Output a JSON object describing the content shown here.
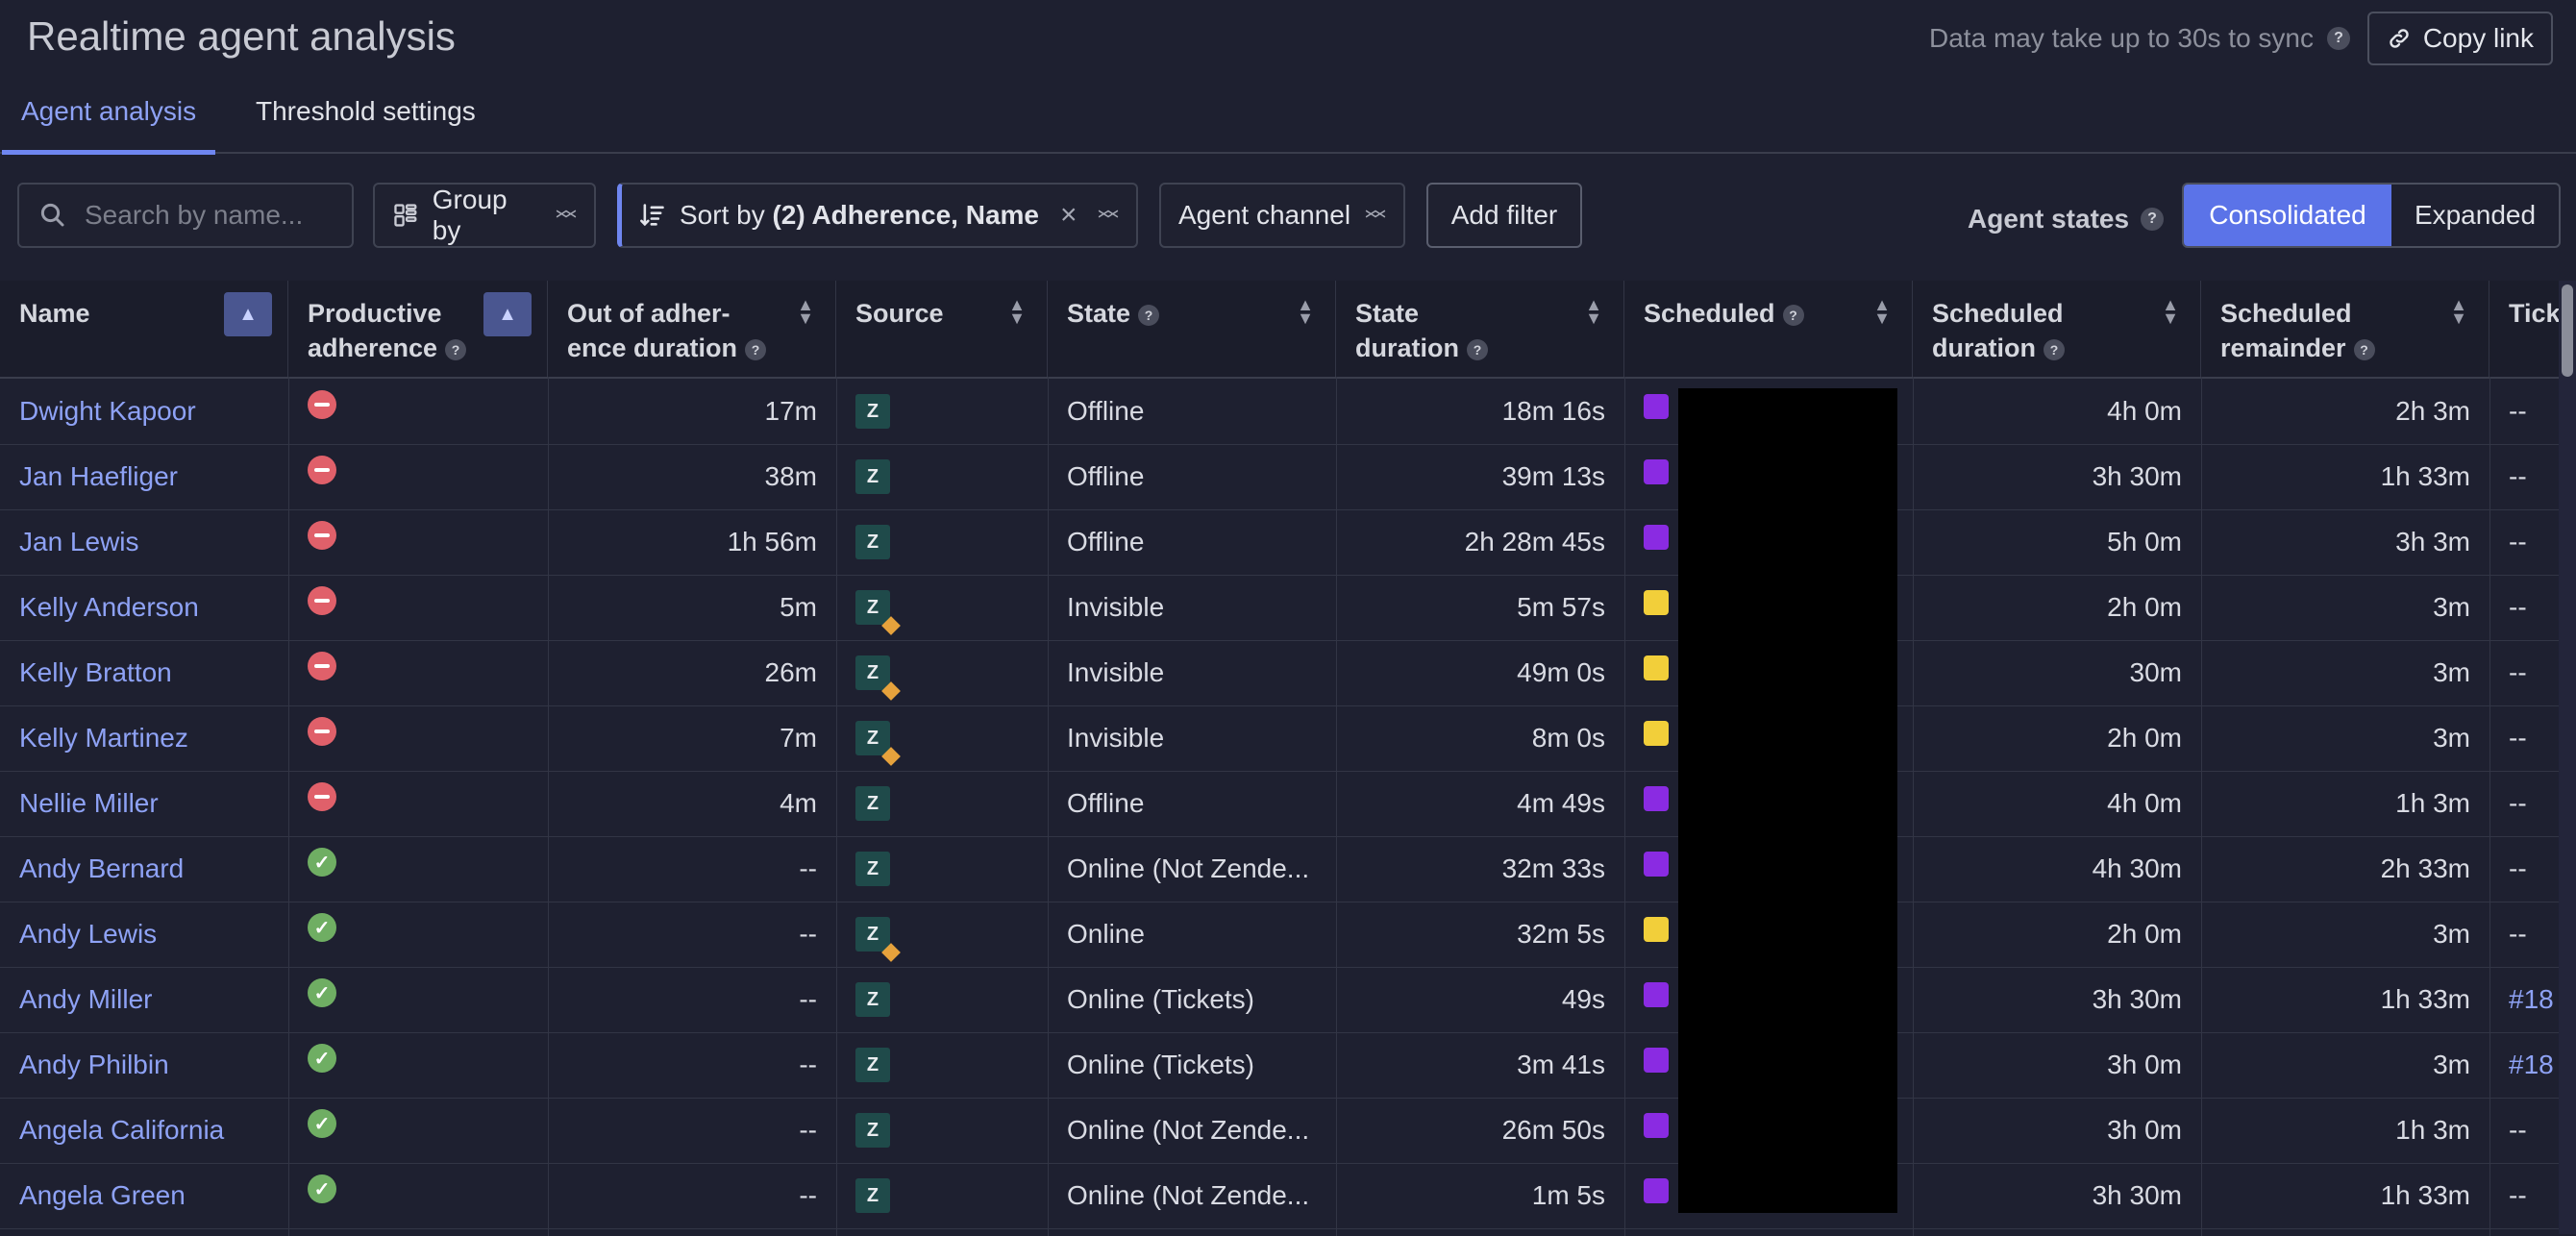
{
  "header": {
    "title": "Realtime agent analysis",
    "sync_note": "Data may take up to 30s to sync",
    "copy_link": "Copy link"
  },
  "tabs": [
    "Agent analysis",
    "Threshold settings"
  ],
  "toolbar": {
    "search_placeholder": "Search by name...",
    "group_by": "Group by",
    "sort_prefix": "Sort by ",
    "sort_value": "(2) Adherence, Name",
    "agent_channel": "Agent channel",
    "add_filter": "Add filter",
    "agent_states_label": "Agent states",
    "consolidated": "Consolidated",
    "expanded": "Expanded"
  },
  "columns": {
    "name": "Name",
    "productive_1": "Productive",
    "productive_2": "adherence",
    "ooa_1": "Out of adher-",
    "ooa_2": "ence duration",
    "source": "Source",
    "state": "State",
    "state_dur_1": "State",
    "state_dur_2": "duration",
    "scheduled": "Scheduled",
    "sched_dur_1": "Scheduled",
    "sched_dur_2": "duration",
    "sched_rem_1": "Scheduled",
    "sched_rem_2": "remainder",
    "tickets": "Tick"
  },
  "rows": [
    {
      "name": "Dwight Kapoor",
      "adherence": "bad",
      "ooa": "17m",
      "source": "zendesk",
      "state": "Offline",
      "state_duration": "18m 16s",
      "scheduled_color": "#8a2be2",
      "sched_duration": "4h 0m",
      "sched_remainder": "2h 3m",
      "ticket": "--"
    },
    {
      "name": "Jan Haefliger",
      "adherence": "bad",
      "ooa": "38m",
      "source": "zendesk",
      "state": "Offline",
      "state_duration": "39m 13s",
      "scheduled_color": "#8a2be2",
      "sched_duration": "3h 30m",
      "sched_remainder": "1h 33m",
      "ticket": "--"
    },
    {
      "name": "Jan Lewis",
      "adherence": "bad",
      "ooa": "1h 56m",
      "source": "zendesk",
      "state": "Offline",
      "state_duration": "2h 28m 45s",
      "scheduled_color": "#8a2be2",
      "sched_duration": "5h 0m",
      "sched_remainder": "3h 3m",
      "ticket": "--"
    },
    {
      "name": "Kelly Anderson",
      "adherence": "bad",
      "ooa": "5m",
      "source": "zendesk-alt",
      "state": "Invisible",
      "state_duration": "5m 57s",
      "scheduled_color": "#f2cf3a",
      "sched_duration": "2h 0m",
      "sched_remainder": "3m",
      "ticket": "--"
    },
    {
      "name": "Kelly Bratton",
      "adherence": "bad",
      "ooa": "26m",
      "source": "zendesk-alt",
      "state": "Invisible",
      "state_duration": "49m 0s",
      "scheduled_color": "#f2cf3a",
      "sched_duration": "30m",
      "sched_remainder": "3m",
      "ticket": "--"
    },
    {
      "name": "Kelly Martinez",
      "adherence": "bad",
      "ooa": "7m",
      "source": "zendesk-alt",
      "state": "Invisible",
      "state_duration": "8m 0s",
      "scheduled_color": "#f2cf3a",
      "sched_duration": "2h 0m",
      "sched_remainder": "3m",
      "ticket": "--"
    },
    {
      "name": "Nellie Miller",
      "adherence": "bad",
      "ooa": "4m",
      "source": "zendesk",
      "state": "Offline",
      "state_duration": "4m 49s",
      "scheduled_color": "#8a2be2",
      "sched_duration": "4h 0m",
      "sched_remainder": "1h 3m",
      "ticket": "--"
    },
    {
      "name": "Andy Bernard",
      "adherence": "good",
      "ooa": "--",
      "source": "zendesk",
      "state": "Online (Not Zende...",
      "state_duration": "32m 33s",
      "scheduled_color": "#8a2be2",
      "sched_duration": "4h 30m",
      "sched_remainder": "2h 33m",
      "ticket": "--"
    },
    {
      "name": "Andy Lewis",
      "adherence": "good",
      "ooa": "--",
      "source": "zendesk-alt",
      "state": "Online",
      "state_duration": "32m 5s",
      "scheduled_color": "#f2cf3a",
      "sched_duration": "2h 0m",
      "sched_remainder": "3m",
      "ticket": "--"
    },
    {
      "name": "Andy Miller",
      "adherence": "good",
      "ooa": "--",
      "source": "zendesk",
      "state": "Online (Tickets)",
      "state_duration": "49s",
      "scheduled_color": "#8a2be2",
      "sched_duration": "3h 30m",
      "sched_remainder": "1h 33m",
      "ticket": "#18"
    },
    {
      "name": "Andy Philbin",
      "adherence": "good",
      "ooa": "--",
      "source": "zendesk",
      "state": "Online (Tickets)",
      "state_duration": "3m 41s",
      "scheduled_color": "#8a2be2",
      "sched_duration": "3h 0m",
      "sched_remainder": "3m",
      "ticket": "#18"
    },
    {
      "name": "Angela California",
      "adherence": "good",
      "ooa": "--",
      "source": "zendesk",
      "state": "Online (Not Zende...",
      "state_duration": "26m 50s",
      "scheduled_color": "#8a2be2",
      "sched_duration": "3h 0m",
      "sched_remainder": "1h 3m",
      "ticket": "--"
    },
    {
      "name": "Angela Green",
      "adherence": "good",
      "ooa": "--",
      "source": "zendesk",
      "state": "Online (Not Zende...",
      "state_duration": "1m 5s",
      "scheduled_color": "#8a2be2",
      "sched_duration": "3h 30m",
      "sched_remainder": "1h 33m",
      "ticket": "--"
    }
  ]
}
